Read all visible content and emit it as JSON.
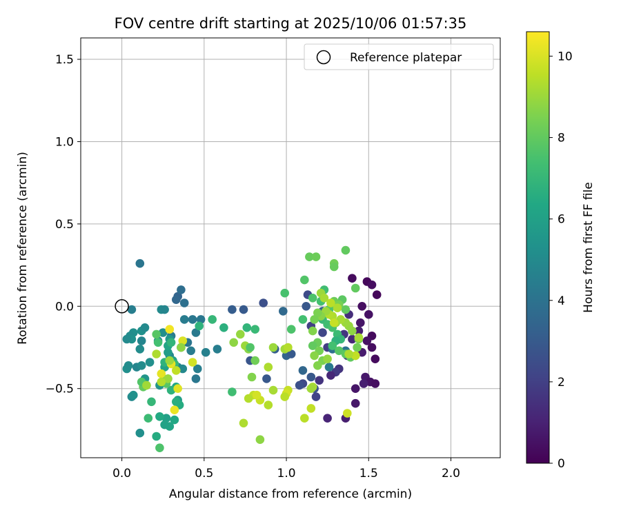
{
  "chart_data": {
    "type": "scatter",
    "title": "FOV centre drift starting at 2025/10/06 01:57:35",
    "xlabel": "Angular distance from reference (arcmin)",
    "ylabel": "Rotation from reference (arcmin)",
    "xlim": [
      -0.25,
      2.3
    ],
    "ylim": [
      -0.92,
      1.63
    ],
    "xticks": [
      0.0,
      0.5,
      1.0,
      1.5,
      2.0
    ],
    "xtick_labels": [
      "0.0",
      "0.5",
      "1.0",
      "1.5",
      "2.0"
    ],
    "yticks": [
      -0.5,
      0.0,
      0.5,
      1.0,
      1.5
    ],
    "ytick_labels": [
      "−0.5",
      "0.0",
      "0.5",
      "1.0",
      "1.5"
    ],
    "grid": true,
    "legend": {
      "placement": "top-right",
      "label": "Reference platepar"
    },
    "reference_point": {
      "x": 0.0,
      "y": 0.0
    },
    "colorbar": {
      "label": "Hours from first FF file",
      "range": [
        0,
        10.6
      ],
      "ticks": [
        0,
        2,
        4,
        6,
        8,
        10
      ],
      "tick_labels": [
        "0",
        "2",
        "4",
        "6",
        "8",
        "10"
      ],
      "colormap": "viridis"
    },
    "points": [
      [
        1.4,
        0.17,
        0.3
      ],
      [
        1.49,
        0.15,
        0.2
      ],
      [
        1.52,
        0.13,
        0.4
      ],
      [
        1.55,
        0.07,
        0.2
      ],
      [
        1.46,
        0.0,
        0.4
      ],
      [
        1.5,
        -0.05,
        0.5
      ],
      [
        1.45,
        -0.1,
        0.6
      ],
      [
        1.52,
        -0.18,
        0.3
      ],
      [
        1.49,
        -0.21,
        0.5
      ],
      [
        1.52,
        -0.25,
        0.4
      ],
      [
        1.46,
        -0.28,
        0.8
      ],
      [
        1.54,
        -0.32,
        0.3
      ],
      [
        1.48,
        -0.43,
        0.7
      ],
      [
        1.51,
        -0.46,
        0.5
      ],
      [
        1.54,
        -0.47,
        0.4
      ],
      [
        1.47,
        -0.47,
        0.9
      ],
      [
        1.42,
        -0.5,
        0.6
      ],
      [
        1.42,
        -0.59,
        0.7
      ],
      [
        1.36,
        -0.68,
        0.9
      ],
      [
        1.25,
        -0.68,
        1.1
      ],
      [
        1.44,
        -0.15,
        0.9
      ],
      [
        1.4,
        -0.2,
        1.2
      ],
      [
        1.37,
        -0.3,
        1.5
      ],
      [
        1.32,
        -0.38,
        1.6
      ],
      [
        1.3,
        -0.4,
        1.8
      ],
      [
        1.27,
        -0.42,
        1.2
      ],
      [
        1.2,
        -0.45,
        1.6
      ],
      [
        1.18,
        -0.55,
        2.1
      ],
      [
        1.38,
        -0.05,
        1.4
      ],
      [
        1.35,
        -0.17,
        1.7
      ],
      [
        1.25,
        -0.25,
        1.9
      ],
      [
        1.15,
        -0.12,
        2.0
      ],
      [
        1.22,
        -0.16,
        2.2
      ],
      [
        1.1,
        -0.47,
        2.3
      ],
      [
        1.08,
        -0.48,
        2.6
      ],
      [
        1.15,
        -0.43,
        2.9
      ],
      [
        1.17,
        -0.5,
        2.7
      ],
      [
        1.1,
        -0.39,
        3.5
      ],
      [
        1.0,
        -0.3,
        3.4
      ],
      [
        1.03,
        -0.29,
        3.0
      ],
      [
        0.93,
        -0.26,
        3.2
      ],
      [
        0.98,
        -0.03,
        3.6
      ],
      [
        0.88,
        -0.44,
        2.9
      ],
      [
        0.86,
        0.02,
        2.6
      ],
      [
        0.78,
        -0.33,
        2.8
      ],
      [
        0.74,
        -0.02,
        3.0
      ],
      [
        0.67,
        -0.02,
        3.1
      ],
      [
        1.13,
        0.07,
        2.4
      ],
      [
        1.12,
        0.0,
        2.9
      ],
      [
        1.22,
        -0.03,
        3.3
      ],
      [
        1.3,
        -0.1,
        3.6
      ],
      [
        1.28,
        -0.26,
        3.9
      ],
      [
        1.36,
        -0.27,
        4.0
      ],
      [
        1.28,
        0.02,
        3.7
      ],
      [
        1.26,
        -0.37,
        4.3
      ],
      [
        0.34,
        0.06,
        3.4
      ],
      [
        0.33,
        0.04,
        3.5
      ],
      [
        0.36,
        0.1,
        3.8
      ],
      [
        0.38,
        0.02,
        3.9
      ],
      [
        0.11,
        0.26,
        4.1
      ],
      [
        0.43,
        -0.08,
        4.2
      ],
      [
        0.48,
        -0.08,
        4.2
      ],
      [
        0.38,
        -0.08,
        4.4
      ],
      [
        0.45,
        -0.16,
        4.3
      ],
      [
        0.46,
        -0.38,
        4.5
      ],
      [
        0.45,
        -0.44,
        4.2
      ],
      [
        0.4,
        -0.22,
        4.1
      ],
      [
        0.42,
        -0.27,
        4.4
      ],
      [
        0.51,
        -0.28,
        4.6
      ],
      [
        0.58,
        -0.26,
        4.5
      ],
      [
        0.3,
        -0.18,
        4.4
      ],
      [
        0.36,
        -0.25,
        4.7
      ],
      [
        0.29,
        -0.3,
        4.8
      ],
      [
        0.34,
        -0.37,
        4.6
      ],
      [
        0.37,
        -0.38,
        4.9
      ],
      [
        0.25,
        -0.16,
        5.2
      ],
      [
        0.22,
        -0.21,
        5.0
      ],
      [
        0.12,
        -0.15,
        5.3
      ],
      [
        0.12,
        -0.21,
        4.8
      ],
      [
        0.11,
        -0.26,
        5.1
      ],
      [
        0.14,
        -0.13,
        5.0
      ],
      [
        0.07,
        -0.16,
        5.2
      ],
      [
        0.05,
        -0.18,
        5.1
      ],
      [
        0.06,
        -0.2,
        5.3
      ],
      [
        0.03,
        -0.2,
        5.0
      ],
      [
        0.06,
        -0.02,
        4.5
      ],
      [
        0.24,
        -0.02,
        5.0
      ],
      [
        0.26,
        -0.02,
        4.8
      ],
      [
        0.03,
        -0.38,
        5.2
      ],
      [
        0.04,
        -0.36,
        5.1
      ],
      [
        0.09,
        -0.37,
        4.8
      ],
      [
        0.12,
        -0.36,
        5.1
      ],
      [
        0.17,
        -0.34,
        5.2
      ],
      [
        0.14,
        -0.44,
        5.5
      ],
      [
        0.06,
        -0.55,
        5.0
      ],
      [
        0.07,
        -0.54,
        5.3
      ],
      [
        0.11,
        -0.77,
        5.2
      ],
      [
        0.23,
        -0.48,
        5.4
      ],
      [
        0.28,
        -0.44,
        6.0
      ],
      [
        0.28,
        -0.28,
        5.8
      ],
      [
        0.29,
        -0.2,
        5.6
      ],
      [
        0.28,
        -0.24,
        6.2
      ],
      [
        0.31,
        -0.33,
        6.0
      ],
      [
        0.26,
        -0.37,
        6.1
      ],
      [
        0.33,
        -0.49,
        6.3
      ],
      [
        0.34,
        -0.57,
        5.9
      ],
      [
        0.27,
        -0.68,
        6.0
      ],
      [
        0.29,
        -0.73,
        6.2
      ],
      [
        0.32,
        -0.69,
        6.3
      ],
      [
        0.26,
        -0.72,
        6.1
      ],
      [
        0.23,
        -0.67,
        6.4
      ],
      [
        0.21,
        -0.79,
        6.5
      ],
      [
        0.35,
        -0.6,
        6.5
      ],
      [
        0.33,
        -0.58,
        6.6
      ],
      [
        0.3,
        -0.51,
        6.8
      ],
      [
        0.18,
        -0.58,
        7.0
      ],
      [
        0.16,
        -0.68,
        7.2
      ],
      [
        0.15,
        -0.48,
        7.5
      ],
      [
        0.13,
        -0.49,
        8.0
      ],
      [
        0.12,
        -0.46,
        7.7
      ],
      [
        0.23,
        -0.86,
        7.6
      ],
      [
        0.22,
        -0.22,
        7.4
      ],
      [
        0.26,
        -0.45,
        7.3
      ],
      [
        0.27,
        -0.47,
        7.8
      ],
      [
        0.21,
        -0.17,
        7.8
      ],
      [
        0.3,
        -0.22,
        6.9
      ],
      [
        0.32,
        -0.35,
        7.0
      ],
      [
        0.26,
        -0.34,
        6.8
      ],
      [
        0.55,
        -0.08,
        7.0
      ],
      [
        0.47,
        -0.12,
        6.8
      ],
      [
        0.62,
        -0.13,
        6.7
      ],
      [
        0.76,
        -0.13,
        6.9
      ],
      [
        0.81,
        -0.14,
        7.1
      ],
      [
        0.67,
        -0.52,
        7.3
      ],
      [
        1.03,
        -0.14,
        7.6
      ],
      [
        1.1,
        -0.08,
        7.4
      ],
      [
        0.99,
        0.08,
        7.5
      ],
      [
        1.11,
        0.16,
        7.7
      ],
      [
        1.14,
        0.3,
        8.1
      ],
      [
        1.18,
        0.3,
        8.2
      ],
      [
        1.36,
        0.34,
        8.0
      ],
      [
        1.29,
        0.26,
        8.3
      ],
      [
        1.29,
        0.24,
        8.1
      ],
      [
        1.42,
        0.11,
        8.0
      ],
      [
        1.16,
        0.05,
        7.6
      ],
      [
        1.21,
        0.03,
        7.4
      ],
      [
        1.23,
        0.1,
        7.3
      ],
      [
        1.3,
        0.01,
        7.6
      ],
      [
        1.34,
        0.04,
        7.9
      ],
      [
        1.26,
        -0.02,
        7.7
      ],
      [
        1.29,
        0.03,
        8.2
      ],
      [
        1.32,
        0.01,
        8.4
      ],
      [
        1.36,
        -0.02,
        8.0
      ],
      [
        1.22,
        -0.08,
        7.1
      ],
      [
        1.25,
        -0.11,
        7.3
      ],
      [
        1.28,
        -0.13,
        7.5
      ],
      [
        1.31,
        -0.17,
        7.2
      ],
      [
        1.33,
        -0.2,
        7.0
      ],
      [
        1.3,
        -0.21,
        6.8
      ],
      [
        1.28,
        -0.24,
        7.4
      ],
      [
        1.32,
        -0.27,
        7.8
      ],
      [
        1.36,
        -0.29,
        7.9
      ],
      [
        1.39,
        -0.31,
        8.0
      ],
      [
        1.42,
        -0.3,
        8.6
      ],
      [
        1.43,
        -0.25,
        8.3
      ],
      [
        1.44,
        -0.2,
        8.5
      ],
      [
        1.4,
        -0.15,
        8.8
      ],
      [
        1.38,
        -0.12,
        8.9
      ],
      [
        1.36,
        -0.1,
        9.0
      ],
      [
        1.33,
        -0.08,
        9.2
      ],
      [
        1.3,
        -0.1,
        9.1
      ],
      [
        1.28,
        -0.06,
        9.3
      ],
      [
        1.26,
        -0.05,
        9.4
      ],
      [
        1.24,
        -0.03,
        9.0
      ],
      [
        1.21,
        -0.06,
        8.7
      ],
      [
        1.19,
        -0.04,
        8.5
      ],
      [
        1.17,
        -0.08,
        8.4
      ],
      [
        1.16,
        -0.15,
        8.6
      ],
      [
        1.19,
        -0.22,
        8.2
      ],
      [
        1.16,
        -0.24,
        8.0
      ],
      [
        1.2,
        -0.27,
        8.4
      ],
      [
        1.17,
        -0.3,
        8.7
      ],
      [
        1.22,
        -0.33,
        8.5
      ],
      [
        1.25,
        -0.32,
        8.9
      ],
      [
        1.19,
        -0.36,
        8.6
      ],
      [
        1.16,
        -0.49,
        9.2
      ],
      [
        1.15,
        -0.5,
        9.1
      ],
      [
        1.15,
        -0.62,
        9.6
      ],
      [
        1.11,
        -0.68,
        9.5
      ],
      [
        1.37,
        -0.65,
        9.8
      ],
      [
        1.42,
        -0.3,
        9.6
      ],
      [
        1.38,
        -0.29,
        9.3
      ],
      [
        1.44,
        -0.19,
        9.2
      ],
      [
        1.01,
        -0.51,
        9.7
      ],
      [
        1.0,
        -0.53,
        9.9
      ],
      [
        0.99,
        -0.55,
        9.5
      ],
      [
        0.92,
        -0.51,
        9.2
      ],
      [
        0.89,
        -0.6,
        9.4
      ],
      [
        0.89,
        -0.37,
        9.3
      ],
      [
        0.92,
        -0.25,
        9.0
      ],
      [
        0.84,
        -0.57,
        9.7
      ],
      [
        0.8,
        -0.54,
        9.6
      ],
      [
        0.82,
        -0.54,
        9.9
      ],
      [
        0.77,
        -0.56,
        9.4
      ],
      [
        0.74,
        -0.71,
        9.3
      ],
      [
        0.84,
        -0.81,
        8.8
      ],
      [
        0.79,
        -0.43,
        8.6
      ],
      [
        0.81,
        -0.33,
        8.3
      ],
      [
        0.77,
        -0.26,
        8.7
      ],
      [
        0.72,
        -0.17,
        8.9
      ],
      [
        0.75,
        -0.24,
        9.0
      ],
      [
        0.68,
        -0.22,
        8.8
      ],
      [
        0.99,
        -0.26,
        9.1
      ],
      [
        1.01,
        -0.25,
        9.4
      ],
      [
        0.78,
        -0.25,
        7.7
      ],
      [
        0.24,
        -0.41,
        10.2
      ],
      [
        0.32,
        -0.63,
        10.3
      ],
      [
        0.34,
        -0.5,
        10.1
      ],
      [
        0.29,
        -0.14,
        10.4
      ],
      [
        0.37,
        -0.21,
        10.0
      ],
      [
        0.3,
        -0.35,
        10.2
      ],
      [
        0.43,
        -0.34,
        9.9
      ],
      [
        0.33,
        -0.39,
        9.6
      ],
      [
        0.28,
        -0.44,
        9.0
      ],
      [
        0.24,
        -0.46,
        9.4
      ],
      [
        0.15,
        -0.48,
        9.1
      ],
      [
        0.21,
        -0.29,
        9.3
      ],
      [
        0.29,
        -0.33,
        9.0
      ],
      [
        0.36,
        -0.25,
        8.8
      ],
      [
        1.21,
        0.08,
        9.0
      ],
      [
        1.23,
        0.05,
        9.2
      ],
      [
        1.27,
        0.02,
        9.5
      ],
      [
        1.31,
        -0.01,
        9.3
      ],
      [
        1.29,
        -0.1,
        9.7
      ]
    ]
  }
}
